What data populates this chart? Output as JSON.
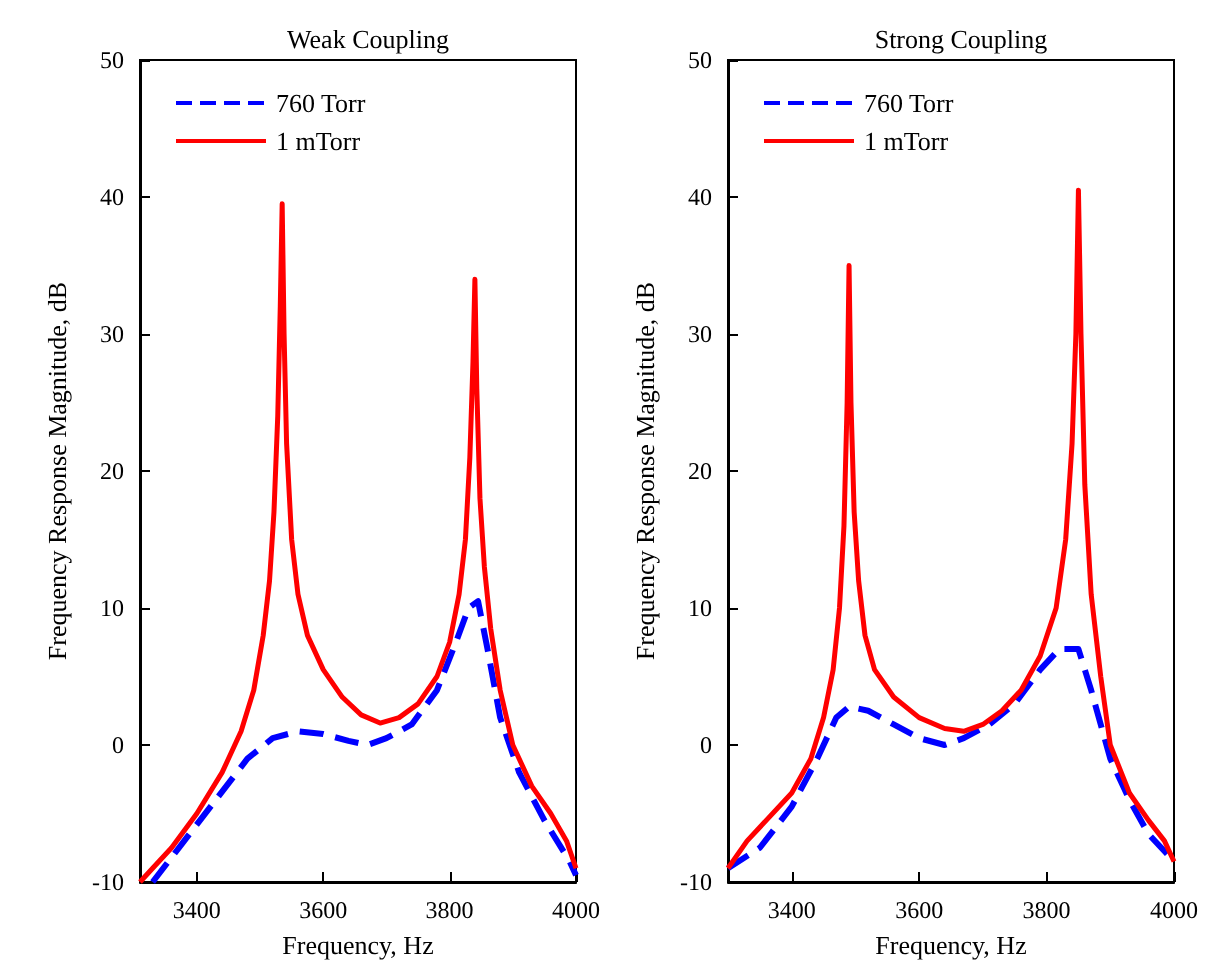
{
  "chart_data": [
    {
      "type": "line",
      "title": "Weak Coupling",
      "xlabel": "Frequency, Hz",
      "ylabel": "Frequency Response Magnitude, dB",
      "xlim": [
        3310,
        4000
      ],
      "xticks": [
        3400,
        3600,
        3800,
        4000
      ],
      "ylim": [
        -10,
        50
      ],
      "yticks": [
        -10,
        0,
        10,
        20,
        30,
        40,
        50
      ],
      "grid": false,
      "legend": "top left",
      "marker": "none",
      "series": [
        {
          "name": "760 Torr",
          "color": "#0000ff",
          "line_style": "dashed",
          "x": [
            3330,
            3380,
            3430,
            3480,
            3520,
            3560,
            3600,
            3640,
            3670,
            3700,
            3740,
            3780,
            3810,
            3830,
            3845,
            3860,
            3880,
            3910,
            3950,
            3990,
            4000
          ],
          "values": [
            -10,
            -7,
            -4,
            -1,
            0.5,
            1,
            0.8,
            0.3,
            0,
            0.5,
            1.5,
            4,
            7.5,
            10,
            10.5,
            7,
            2,
            -2,
            -5.5,
            -8.5,
            -9.5
          ]
        },
        {
          "name": "1 mTorr",
          "color": "#ff0000",
          "line_style": "solid",
          "x": [
            3310,
            3330,
            3360,
            3400,
            3440,
            3470,
            3490,
            3505,
            3515,
            3522,
            3528,
            3532,
            3535,
            3538,
            3542,
            3550,
            3560,
            3575,
            3600,
            3630,
            3660,
            3690,
            3720,
            3750,
            3780,
            3800,
            3815,
            3825,
            3832,
            3837,
            3840,
            3843,
            3848,
            3855,
            3865,
            3880,
            3900,
            3930,
            3960,
            3985,
            4000
          ],
          "values": [
            -10,
            -9,
            -7.5,
            -5,
            -2,
            1,
            4,
            8,
            12,
            17,
            24,
            32,
            39.5,
            30,
            22,
            15,
            11,
            8,
            5.5,
            3.5,
            2.2,
            1.6,
            2,
            3,
            5,
            7.5,
            11,
            15,
            21,
            28,
            34,
            26,
            18,
            13,
            8.5,
            4,
            0,
            -3,
            -5,
            -7,
            -9
          ]
        }
      ]
    },
    {
      "type": "line",
      "title": "Strong Coupling",
      "xlabel": "Frequency, Hz",
      "ylabel": "Frequency Response Magnitude, dB",
      "xlim": [
        3300,
        4000
      ],
      "xticks": [
        3400,
        3600,
        3800,
        4000
      ],
      "ylim": [
        -10,
        50
      ],
      "yticks": [
        -10,
        0,
        10,
        20,
        30,
        40,
        50
      ],
      "grid": false,
      "legend": "top left",
      "marker": "none",
      "series": [
        {
          "name": "760 Torr",
          "color": "#0000ff",
          "line_style": "dashed",
          "x": [
            3300,
            3350,
            3400,
            3440,
            3470,
            3490,
            3520,
            3560,
            3600,
            3640,
            3670,
            3710,
            3750,
            3790,
            3820,
            3850,
            3870,
            3900,
            3930,
            3960,
            4000
          ],
          "values": [
            -9,
            -7.5,
            -4.5,
            -1,
            2,
            2.8,
            2.5,
            1.5,
            0.5,
            0,
            0.5,
            1.5,
            3,
            5.5,
            7,
            7,
            4,
            -1,
            -4,
            -6.5,
            -8.5
          ]
        },
        {
          "name": "1 mTorr",
          "color": "#ff0000",
          "line_style": "solid",
          "x": [
            3300,
            3330,
            3360,
            3400,
            3430,
            3450,
            3465,
            3475,
            3482,
            3487,
            3490,
            3493,
            3498,
            3505,
            3515,
            3530,
            3560,
            3600,
            3640,
            3670,
            3700,
            3730,
            3760,
            3790,
            3815,
            3830,
            3840,
            3846,
            3850,
            3854,
            3860,
            3870,
            3885,
            3900,
            3930,
            3960,
            3985,
            4000
          ],
          "values": [
            -9,
            -7,
            -5.5,
            -3.5,
            -1,
            2,
            5.5,
            10,
            16,
            25,
            35,
            25,
            17,
            12,
            8,
            5.5,
            3.5,
            2,
            1.2,
            1,
            1.5,
            2.5,
            4,
            6.5,
            10,
            15,
            22,
            30,
            40.5,
            30,
            19,
            11,
            5,
            0,
            -3.5,
            -5.5,
            -7,
            -8.5
          ]
        }
      ]
    }
  ]
}
